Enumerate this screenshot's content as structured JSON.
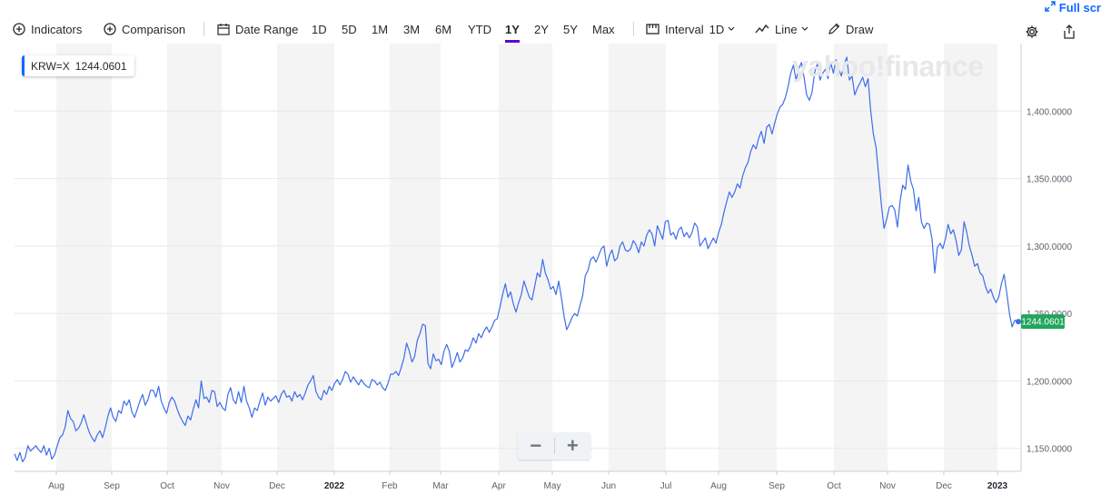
{
  "toolbar": {
    "indicators": "Indicators",
    "comparison": "Comparison",
    "date_range": "Date Range",
    "ranges": [
      "1D",
      "5D",
      "1M",
      "3M",
      "6M",
      "YTD",
      "1Y",
      "2Y",
      "5Y",
      "Max"
    ],
    "active_range": "1Y",
    "interval_label": "Interval",
    "interval_value": "1D",
    "chart_type": "Line",
    "draw": "Draw",
    "fullscreen": "Full scr"
  },
  "legend": {
    "symbol": "KRW=X",
    "value": "1244.0601"
  },
  "watermark": "yahoo!finance",
  "colors": {
    "line": "#3d6de8",
    "accent": "#6001d2",
    "price_tag": "#21a65c",
    "band": "#f4f4f5",
    "link": "#0f69ff"
  },
  "icons": [
    "plus-circle-icon",
    "calendar-icon",
    "interval-icon",
    "line-chart-icon",
    "pencil-icon",
    "expand-icon",
    "gear-icon",
    "share-icon",
    "minus-icon",
    "plus-icon"
  ],
  "zoom": {
    "minus": "−",
    "plus": "+"
  },
  "chart_data": {
    "type": "line",
    "last_price_label": "1244.0601",
    "y_ticks": [
      "1,150.0000",
      "1,200.0000",
      "1,250.0000",
      "1,300.0000",
      "1,350.0000",
      "1,400.0000"
    ],
    "x_ticks": [
      "Aug",
      "Sep",
      "Oct",
      "Nov",
      "Dec",
      "2022",
      "Feb",
      "Mar",
      "Apr",
      "May",
      "Jun",
      "Jul",
      "Aug",
      "Sep",
      "Oct",
      "Nov",
      "Dec",
      "2023"
    ],
    "ylim": [
      1133,
      1450
    ],
    "series": [
      {
        "values": [
          1146,
          1141,
          1147,
          1140,
          1143,
          1152,
          1148,
          1150,
          1152,
          1149,
          1147,
          1152,
          1145,
          1150,
          1142,
          1145,
          1152,
          1158,
          1160,
          1166,
          1178,
          1172,
          1170,
          1163,
          1165,
          1169,
          1175,
          1168,
          1162,
          1158,
          1155,
          1160,
          1163,
          1158,
          1165,
          1174,
          1180,
          1173,
          1170,
          1178,
          1176,
          1185,
          1182,
          1186,
          1177,
          1173,
          1179,
          1185,
          1190,
          1182,
          1186,
          1193,
          1193,
          1188,
          1196,
          1185,
          1180,
          1176,
          1184,
          1188,
          1185,
          1179,
          1174,
          1170,
          1167,
          1174,
          1171,
          1179,
          1186,
          1180,
          1200,
          1187,
          1188,
          1184,
          1193,
          1192,
          1181,
          1184,
          1180,
          1178,
          1190,
          1195,
          1186,
          1183,
          1192,
          1184,
          1196,
          1185,
          1180,
          1173,
          1180,
          1178,
          1185,
          1191,
          1182,
          1188,
          1185,
          1187,
          1189,
          1184,
          1190,
          1193,
          1188,
          1189,
          1185,
          1192,
          1188,
          1190,
          1186,
          1191,
          1197,
          1200,
          1204,
          1192,
          1188,
          1186,
          1193,
          1190,
          1196,
          1193,
          1198,
          1201,
          1197,
          1201,
          1207,
          1205,
          1199,
          1203,
          1200,
          1197,
          1201,
          1198,
          1196,
          1195,
          1201,
          1200,
          1197,
          1199,
          1195,
          1193,
          1198,
          1205,
          1205,
          1207,
          1204,
          1210,
          1217,
          1228,
          1222,
          1214,
          1218,
          1230,
          1235,
          1242,
          1241,
          1213,
          1209,
          1220,
          1215,
          1216,
          1212,
          1222,
          1227,
          1222,
          1210,
          1215,
          1221,
          1214,
          1217,
          1223,
          1222,
          1226,
          1232,
          1228,
          1235,
          1232,
          1237,
          1240,
          1236,
          1240,
          1245,
          1246,
          1255,
          1264,
          1272,
          1262,
          1266,
          1257,
          1251,
          1258,
          1264,
          1274,
          1268,
          1262,
          1260,
          1270,
          1280,
          1277,
          1290,
          1280,
          1275,
          1268,
          1270,
          1264,
          1274,
          1262,
          1248,
          1238,
          1242,
          1247,
          1250,
          1248,
          1256,
          1263,
          1278,
          1282,
          1290,
          1292,
          1288,
          1293,
          1298,
          1300,
          1285,
          1293,
          1297,
          1289,
          1291,
          1300,
          1303,
          1297,
          1296,
          1298,
          1304,
          1301,
          1295,
          1303,
          1300,
          1308,
          1312,
          1309,
          1300,
          1315,
          1310,
          1305,
          1318,
          1319,
          1308,
          1310,
          1305,
          1312,
          1314,
          1307,
          1310,
          1306,
          1310,
          1317,
          1314,
          1300,
          1303,
          1306,
          1298,
          1302,
          1306,
          1302,
          1310,
          1316,
          1325,
          1333,
          1340,
          1336,
          1340,
          1346,
          1343,
          1352,
          1358,
          1362,
          1370,
          1375,
          1372,
          1380,
          1385,
          1376,
          1388,
          1390,
          1383,
          1391,
          1398,
          1403,
          1405,
          1410,
          1418,
          1428,
          1434,
          1423,
          1431,
          1436,
          1425,
          1412,
          1408,
          1414,
          1429,
          1435,
          1423,
          1428,
          1431,
          1424,
          1436,
          1428,
          1438,
          1431,
          1426,
          1434,
          1440,
          1423,
          1426,
          1412,
          1417,
          1421,
          1425,
          1418,
          1424,
          1400,
          1383,
          1373,
          1352,
          1330,
          1313,
          1320,
          1329,
          1330,
          1327,
          1314,
          1333,
          1345,
          1342,
          1360,
          1348,
          1342,
          1326,
          1336,
          1318,
          1313,
          1317,
          1316,
          1305,
          1280,
          1299,
          1302,
          1298,
          1305,
          1316,
          1309,
          1312,
          1304,
          1293,
          1297,
          1318,
          1310,
          1300,
          1293,
          1285,
          1287,
          1280,
          1278,
          1270,
          1265,
          1268,
          1262,
          1258,
          1262,
          1272,
          1279,
          1265,
          1250,
          1240,
          1245,
          1244
        ]
      }
    ]
  }
}
